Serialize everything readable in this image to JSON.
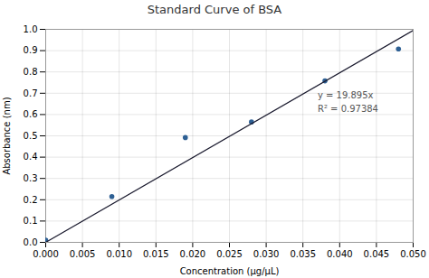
{
  "chart_data": {
    "type": "scatter",
    "title": "Standard Curve of BSA",
    "xlabel": "Concentration (μg/μL)",
    "ylabel": "Absorbance (nm)",
    "series": [
      {
        "type": "scatter",
        "color": "#2e6094",
        "x": [
          0.0,
          0.009,
          0.019,
          0.028,
          0.038,
          0.048
        ],
        "values": [
          0.01,
          0.215,
          0.492,
          0.565,
          0.758,
          0.908
        ]
      },
      {
        "type": "line",
        "color": "#1a1a2e",
        "x": [
          0.0,
          0.05
        ],
        "values": [
          0.0,
          0.99475
        ]
      }
    ],
    "annotations": [
      {
        "x": 0.037,
        "y": 0.72,
        "lines": [
          "y = 19.895x",
          "R² = 0.97384"
        ]
      }
    ],
    "xlim": [
      0,
      0.05
    ],
    "ylim": [
      0,
      1.0
    ],
    "xticks": [
      {
        "value": 0,
        "label": "0.000"
      },
      {
        "value": 0.005,
        "label": "0.005"
      },
      {
        "value": 0.01,
        "label": "0.010"
      },
      {
        "value": 0.015,
        "label": "0.015"
      },
      {
        "value": 0.02,
        "label": "0.020"
      },
      {
        "value": 0.025,
        "label": "0.025"
      },
      {
        "value": 0.03,
        "label": "0.030"
      },
      {
        "value": 0.035,
        "label": "0.035"
      },
      {
        "value": 0.04,
        "label": "0.040"
      },
      {
        "value": 0.045,
        "label": "0.045"
      },
      {
        "value": 0.05,
        "label": "0.050"
      }
    ],
    "yticks": [
      {
        "value": 0,
        "label": "0.0"
      },
      0.1,
      0.2,
      0.3,
      0.4,
      0.5,
      0.6,
      0.7,
      0.8,
      0.9,
      {
        "value": 1,
        "label": "1.0"
      }
    ],
    "grid": true
  }
}
